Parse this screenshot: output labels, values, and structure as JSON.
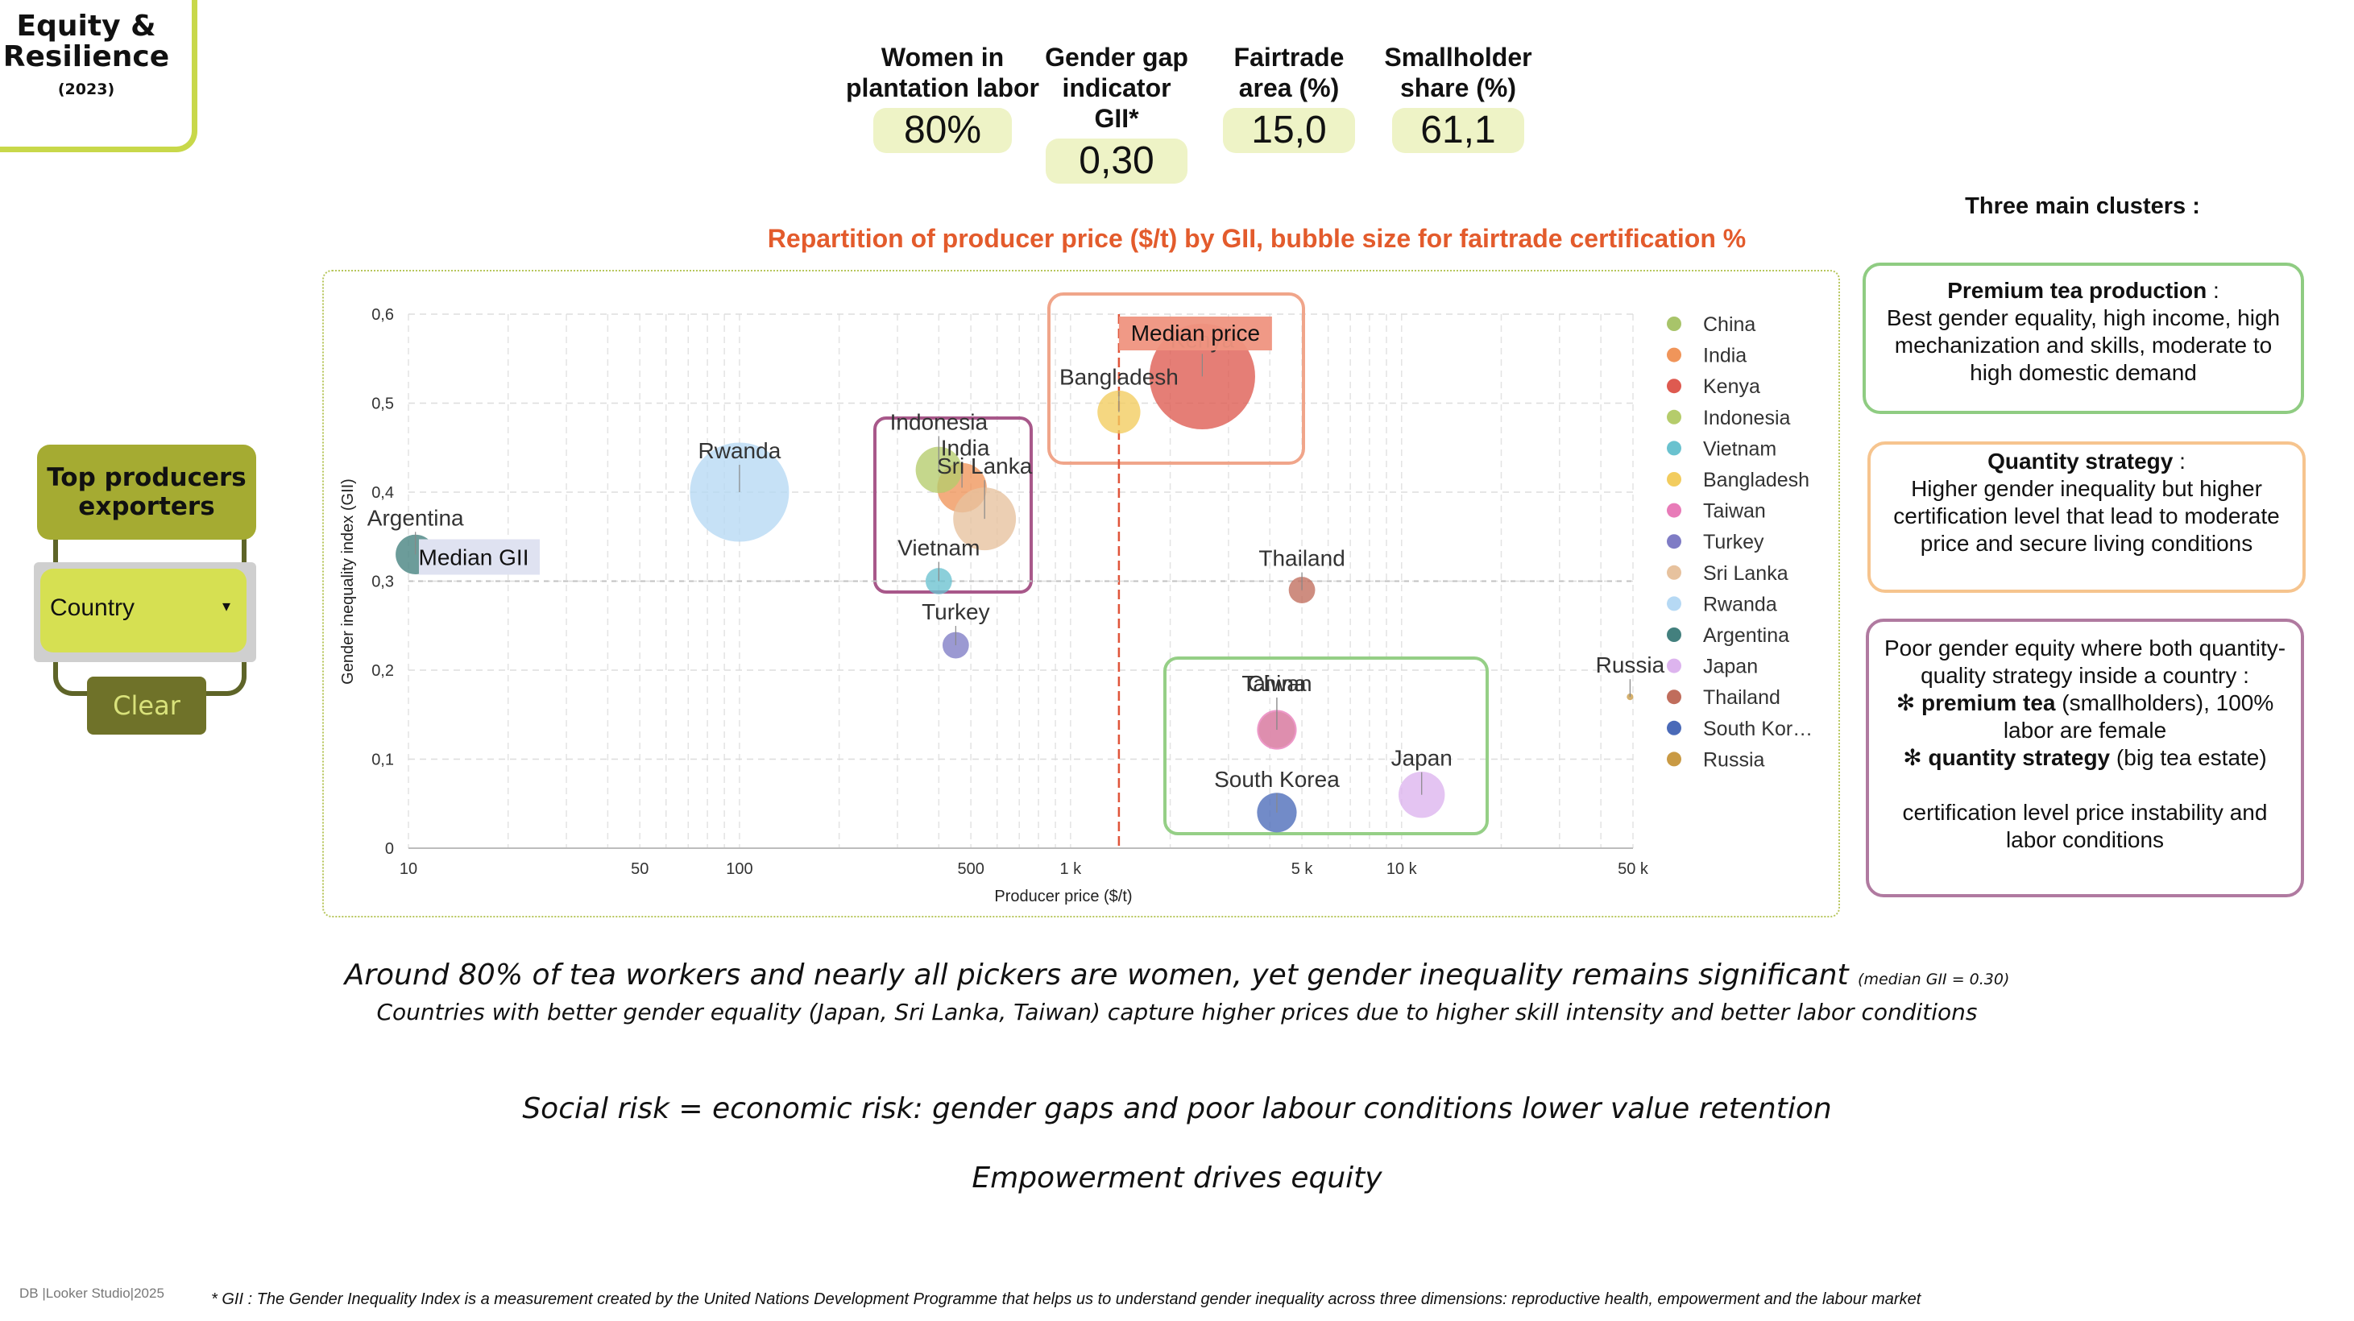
{
  "header": {
    "title_line1": "Equity &",
    "title_line2": "Resilience",
    "year": "(2023)"
  },
  "kpis": [
    {
      "label_l1": "Women in",
      "label_l2": "plantation labor",
      "value": "80%"
    },
    {
      "label_l1": "Gender gap",
      "label_l2": "indicator GII*",
      "value": "0,30"
    },
    {
      "label_l1": "Fairtrade",
      "label_l2": "area (%)",
      "value": "15,0"
    },
    {
      "label_l1": "Smallholder",
      "label_l2": "share (%)",
      "value": "61,1"
    }
  ],
  "filter": {
    "title_l1": "Top producers",
    "title_l2": "exporters",
    "select_value": "Country",
    "clear_label": "Clear"
  },
  "chart_data": {
    "type": "scatter",
    "title": "Repartition of producer price ($/t) by GII, bubble size for fairtrade certification %",
    "xlabel": "Producer price ($/t)",
    "ylabel": "Gender inequality index (GII)",
    "x_scale": "log",
    "xlim": [
      10,
      50000
    ],
    "ylim": [
      0,
      0.6
    ],
    "x_ticks": [
      {
        "value": 10,
        "label": "10"
      },
      {
        "value": 50,
        "label": "50"
      },
      {
        "value": 100,
        "label": "100"
      },
      {
        "value": 500,
        "label": "500"
      },
      {
        "value": 1000,
        "label": "1 k"
      },
      {
        "value": 5000,
        "label": "5 k"
      },
      {
        "value": 10000,
        "label": "10 k"
      },
      {
        "value": 50000,
        "label": "50 k"
      }
    ],
    "y_ticks": [
      {
        "value": 0,
        "label": "0"
      },
      {
        "value": 0.1,
        "label": "0,1"
      },
      {
        "value": 0.2,
        "label": "0,2"
      },
      {
        "value": 0.3,
        "label": "0,3"
      },
      {
        "value": 0.4,
        "label": "0,4"
      },
      {
        "value": 0.5,
        "label": "0,5"
      },
      {
        "value": 0.6,
        "label": "0,6"
      }
    ],
    "grid": true,
    "legend_position": "right",
    "median_price": {
      "value": 1400,
      "label": "Median price"
    },
    "median_gii": {
      "value": 0.3,
      "label": "Median GII"
    },
    "series": [
      {
        "name": "China",
        "legend": "China",
        "x": 4200,
        "y": 0.133,
        "size": 11,
        "color": "#a8c46a"
      },
      {
        "name": "India",
        "legend": "India",
        "x": 470,
        "y": 0.405,
        "size": 15,
        "color": "#f0955a"
      },
      {
        "name": "Kenya",
        "legend": "Kenya",
        "x": 2500,
        "y": 0.53,
        "size": 32,
        "color": "#de5a50"
      },
      {
        "name": "Indonesia",
        "legend": "Indonesia",
        "x": 400,
        "y": 0.425,
        "size": 14,
        "color": "#b5cc6b"
      },
      {
        "name": "Vietnam",
        "legend": "Vietnam",
        "x": 400,
        "y": 0.3,
        "size": 8,
        "color": "#6ac2cf"
      },
      {
        "name": "Bangladesh",
        "legend": "Bangladesh",
        "x": 1400,
        "y": 0.49,
        "size": 13,
        "color": "#f2cc5e"
      },
      {
        "name": "Taiwan",
        "legend": "Taiwan",
        "x": 4200,
        "y": 0.133,
        "size": 12,
        "color": "#e87bb8"
      },
      {
        "name": "Turkey",
        "legend": "Turkey",
        "x": 450,
        "y": 0.228,
        "size": 8,
        "color": "#7f7cc5"
      },
      {
        "name": "Sri Lanka",
        "legend": "Sri Lanka",
        "x": 550,
        "y": 0.37,
        "size": 19,
        "color": "#e7c29e"
      },
      {
        "name": "Rwanda",
        "legend": "Rwanda",
        "x": 100,
        "y": 0.4,
        "size": 30,
        "color": "#b6d9f4"
      },
      {
        "name": "Argentina",
        "legend": "Argentina",
        "x": 10.5,
        "y": 0.33,
        "size": 12,
        "color": "#43807e"
      },
      {
        "name": "Japan",
        "legend": "Japan",
        "x": 11500,
        "y": 0.06,
        "size": 14,
        "color": "#ddb4ee"
      },
      {
        "name": "Thailand",
        "legend": "Thailand",
        "x": 5000,
        "y": 0.29,
        "size": 8,
        "color": "#c06d5c"
      },
      {
        "name": "South Korea",
        "legend": "South Kor…",
        "x": 4200,
        "y": 0.04,
        "size": 12,
        "color": "#4a6ab8"
      },
      {
        "name": "Russia",
        "legend": "Russia",
        "x": 49000,
        "y": 0.17,
        "size": 2,
        "color": "#c99a44"
      }
    ]
  },
  "clusters": {
    "title": "Three main clusters :",
    "premium": {
      "title": "Premium tea production",
      "suffix": " :",
      "text": "Best gender equality, high income, high mechanization and skills, moderate to high domestic demand",
      "color": "#8fcc82"
    },
    "quantity": {
      "title": "Quantity strategy",
      "suffix": " :",
      "text": "Higher gender inequality but higher certification level that lead to moderate price and secure living conditions",
      "color": "#f6c48e"
    },
    "poor": {
      "text1": "Poor gender equity where both quantity-quality strategy inside a country :",
      "b1_bold": "premium tea",
      "b1_rest": " (smallholders), 100% labor are female",
      "b2_bold": "quantity strategy",
      "b2_rest": " (big tea estate)",
      "text2": "certification level price instability and labor conditions",
      "bullet": "✻",
      "color": "#b07aa0"
    }
  },
  "captions": {
    "c1_main": "Around 80% of tea workers and nearly all pickers are women, yet gender inequality remains significant",
    "c1_small": "(median GII = 0.30)",
    "c2": "Countries with better gender equality (Japan, Sri Lanka, Taiwan) capture higher prices due to higher skill intensity and better labor conditions",
    "c3": "Social risk = economic risk:  gender gaps and poor labour conditions lower value retention",
    "c4": "Empowerment drives equity"
  },
  "footer": {
    "credit": "DB |Looker Studio|2025",
    "footnote": "* GII : The Gender Inequality Index is a measurement created by the United Nations Development Programme that helps us to understand gender inequality across three dimensions: reproductive health, empowerment and the labour market"
  }
}
